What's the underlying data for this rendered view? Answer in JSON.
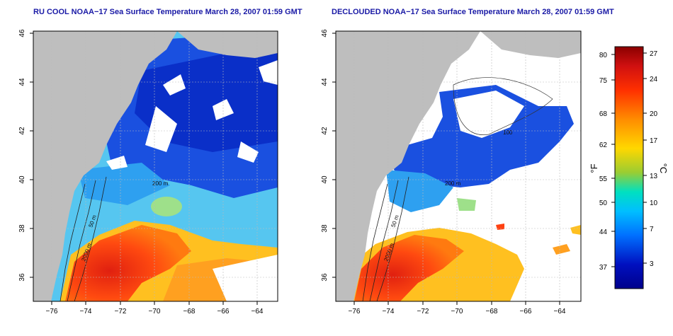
{
  "left_panel": {
    "title": "RU COOL NOAA−17 Sea Surface Temperature March 28, 2007 01:59 GMT",
    "contour_labels": [
      "50 m",
      "200 m",
      "2000 m"
    ]
  },
  "right_panel": {
    "title": "DECLOUDED NOAA−17 Sea Surface Temperature March 28, 2007 01:59 GMT",
    "contour_labels": [
      "50 m",
      "200 m",
      "2000 m",
      "100"
    ]
  },
  "map_axes": {
    "x_ticks": [
      "−76",
      "−74",
      "−72",
      "−70",
      "−68",
      "−66",
      "−64"
    ],
    "y_ticks": [
      "36",
      "38",
      "40",
      "42",
      "44",
      "46"
    ],
    "lon_range": [
      -77.2,
      -63
    ],
    "lat_range": [
      35,
      46
    ]
  },
  "colorbar": {
    "f_label": "°F",
    "c_label": "°C",
    "f_ticks": [
      "80",
      "75",
      "68",
      "62",
      "55",
      "50",
      "44",
      "37"
    ],
    "c_ticks": [
      "27",
      "24",
      "20",
      "17",
      "13",
      "10",
      "7",
      "3"
    ],
    "colors": [
      "#8b0000",
      "#d01010",
      "#ff3000",
      "#ff8c00",
      "#ffd700",
      "#9acd32",
      "#00e0c0",
      "#00bfff",
      "#0070ff",
      "#0010c0",
      "#00008b"
    ]
  },
  "colors": {
    "land": "#bebebe",
    "cloud": "#ffffff",
    "title_text": "#1a1aa6"
  }
}
